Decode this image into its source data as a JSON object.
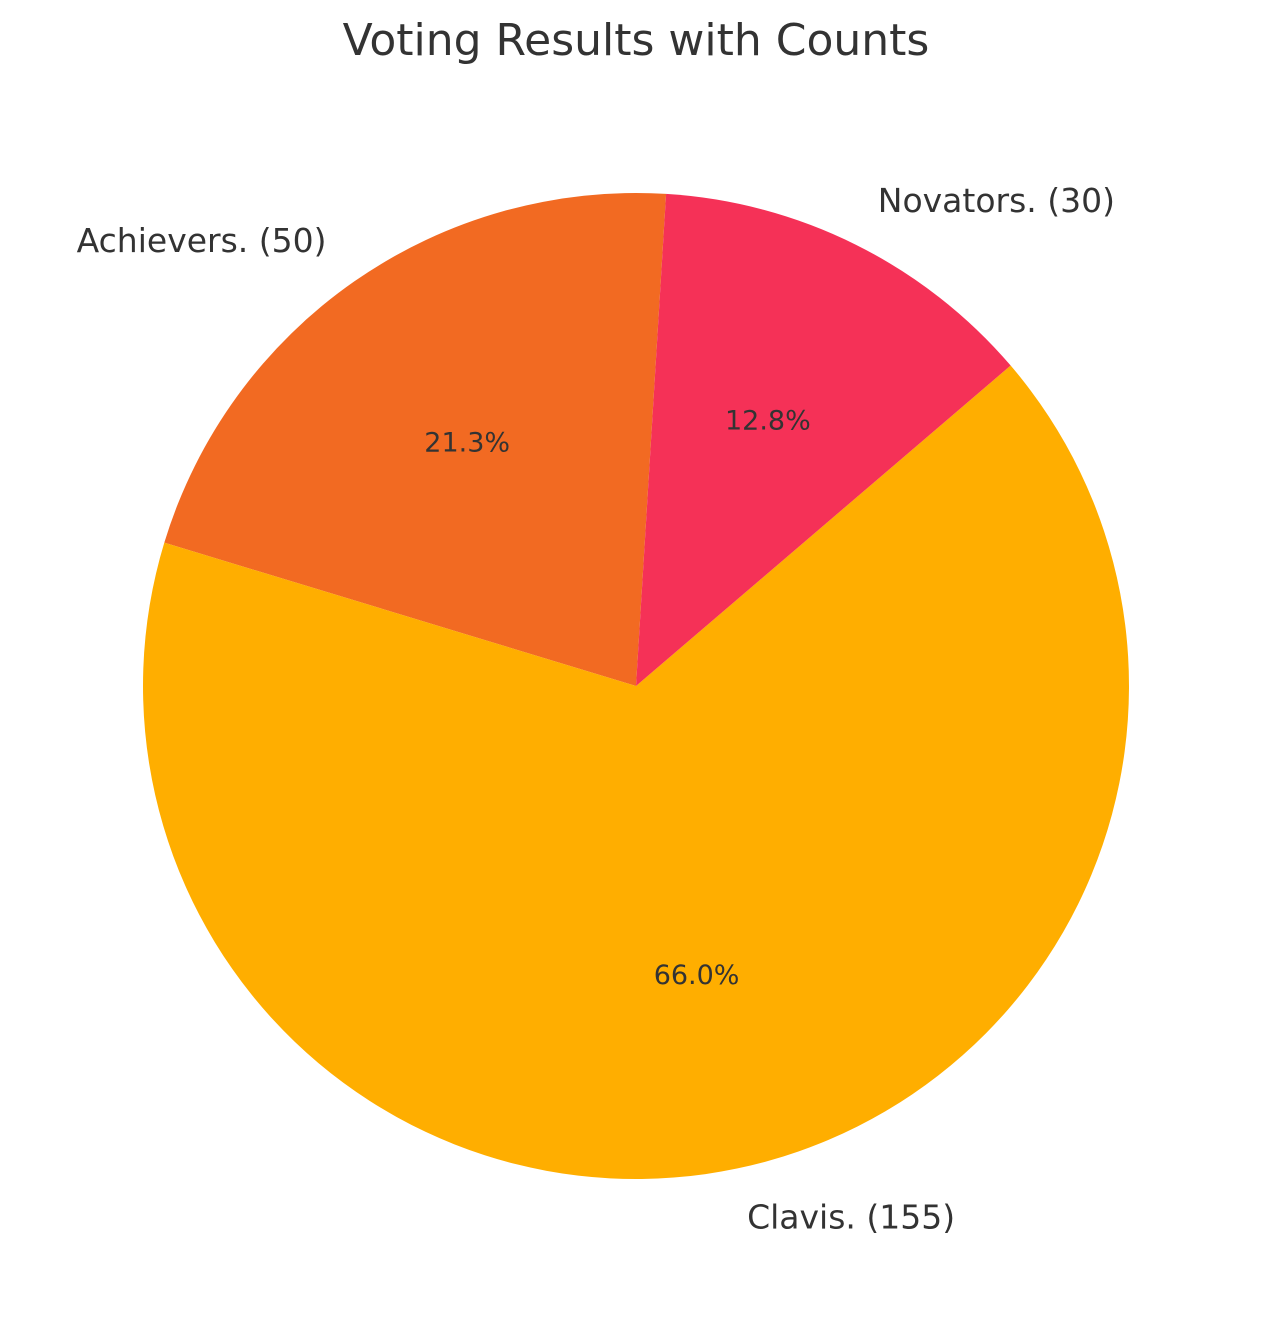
{
  "chart_data": {
    "type": "pie",
    "title": "Voting Results with Counts",
    "slices": [
      {
        "label": "Achievers. (50)",
        "value": 50,
        "percent_label": "21.3%",
        "color": "#F26A22"
      },
      {
        "label": "Clavis. (155)",
        "value": 155,
        "percent_label": "66.0%",
        "color": "#FFAE00"
      },
      {
        "label": "Novators. (30)",
        "value": 30,
        "percent_label": "12.8%",
        "color": "#F53157"
      }
    ],
    "start_angle_deg": 86.5,
    "direction": "counterclockwise"
  }
}
